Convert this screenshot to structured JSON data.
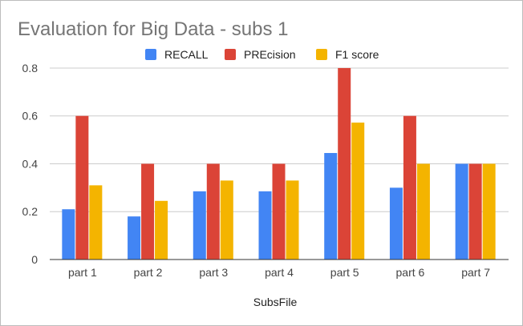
{
  "chart_data": {
    "type": "bar",
    "title": "Evaluation for Big Data - subs 1",
    "xlabel": "SubsFile",
    "ylabel": "",
    "categories": [
      "part 1",
      "part 2",
      "part 3",
      "part 4",
      "part 5",
      "part 6",
      "part 7"
    ],
    "series": [
      {
        "name": "RECALL",
        "color": "#4285f4",
        "values": [
          0.21,
          0.18,
          0.285,
          0.285,
          0.445,
          0.3,
          0.4
        ]
      },
      {
        "name": "PREcision",
        "color": "#db4437",
        "values": [
          0.6,
          0.4,
          0.4,
          0.4,
          0.8,
          0.6,
          0.4
        ]
      },
      {
        "name": "F1 score",
        "color": "#f4b400",
        "values": [
          0.31,
          0.245,
          0.33,
          0.33,
          0.572,
          0.4,
          0.4
        ]
      }
    ],
    "ylim": [
      0,
      0.85
    ],
    "yticks": [
      "0",
      "0.2",
      "0.4",
      "0.6",
      "0.8"
    ],
    "ytick_values": [
      0,
      0.2,
      0.4,
      0.6,
      0.8
    ],
    "grid": true,
    "legend_position": "top"
  }
}
